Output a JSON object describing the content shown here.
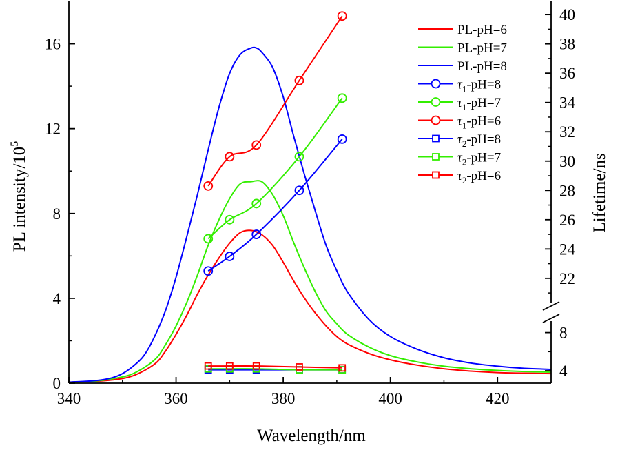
{
  "chart_data": {
    "type": "line",
    "xlabel": "Wavelength/nm",
    "ylabel_left": "PL intensity/10⁵",
    "ylabel_right": "Lifetime/ns",
    "xlim": [
      340,
      430
    ],
    "ylim_left": [
      0,
      18
    ],
    "y_right_lower_range": [
      2.7,
      9.2
    ],
    "y_right_upper_range": [
      20.3,
      40.9
    ],
    "y_right_break_between": [
      9.2,
      20.3
    ],
    "x_ticks": [
      340,
      360,
      380,
      400,
      420
    ],
    "y_left_ticks": [
      0,
      4,
      8,
      12,
      16
    ],
    "y_right_ticks": [
      4,
      8,
      22,
      24,
      26,
      28,
      30,
      32,
      34,
      36,
      38,
      40
    ],
    "grid": false,
    "legend_position": "top-right",
    "colors": {
      "red": "#ff0000",
      "green": "#33ee00",
      "blue": "#0000ff"
    },
    "pl_series": [
      {
        "name": "PL-pH=6",
        "color": "red",
        "axis": "left",
        "x": [
          340,
          344,
          348,
          352,
          356,
          358,
          360,
          362,
          364,
          366,
          368,
          370,
          372,
          374,
          376,
          378,
          380,
          382,
          384,
          386,
          388,
          390,
          392,
          396,
          400,
          405,
          410,
          415,
          420,
          425,
          430
        ],
        "y": [
          0.05,
          0.08,
          0.15,
          0.35,
          0.9,
          1.5,
          2.3,
          3.2,
          4.2,
          5.1,
          5.9,
          6.6,
          7.1,
          7.2,
          7.0,
          6.5,
          5.7,
          4.8,
          4.0,
          3.3,
          2.7,
          2.2,
          1.85,
          1.4,
          1.1,
          0.85,
          0.68,
          0.57,
          0.5,
          0.47,
          0.45
        ]
      },
      {
        "name": "PL-pH=7",
        "color": "green",
        "axis": "left",
        "x": [
          340,
          344,
          348,
          352,
          356,
          358,
          360,
          362,
          364,
          366,
          368,
          370,
          372,
          374,
          376,
          378,
          380,
          382,
          384,
          386,
          388,
          390,
          392,
          396,
          400,
          405,
          410,
          415,
          420,
          425,
          430
        ],
        "y": [
          0.05,
          0.08,
          0.2,
          0.45,
          1.1,
          1.8,
          2.7,
          3.8,
          5.1,
          6.5,
          7.7,
          8.7,
          9.4,
          9.5,
          9.5,
          8.9,
          7.9,
          6.6,
          5.4,
          4.3,
          3.4,
          2.8,
          2.3,
          1.7,
          1.3,
          1.0,
          0.8,
          0.68,
          0.6,
          0.55,
          0.52
        ]
      },
      {
        "name": "PL-pH=8",
        "color": "blue",
        "axis": "left",
        "x": [
          340,
          344,
          346,
          348,
          350,
          352,
          354,
          356,
          358,
          360,
          362,
          364,
          366,
          368,
          370,
          372,
          374,
          375,
          376,
          378,
          380,
          382,
          384,
          386,
          388,
          390,
          392,
          396,
          400,
          405,
          410,
          415,
          420,
          425,
          430
        ],
        "y": [
          0.05,
          0.1,
          0.15,
          0.25,
          0.45,
          0.8,
          1.3,
          2.2,
          3.4,
          5.0,
          6.9,
          8.9,
          11.0,
          13.0,
          14.6,
          15.5,
          15.8,
          15.8,
          15.6,
          14.9,
          13.5,
          11.6,
          9.8,
          8.1,
          6.5,
          5.3,
          4.3,
          3.0,
          2.2,
          1.6,
          1.2,
          0.95,
          0.8,
          0.7,
          0.65
        ]
      }
    ],
    "lifetime_series": [
      {
        "name": "τ1-pH=8",
        "tau": "τ",
        "sub": "1",
        "suffix": "-pH=8",
        "color": "blue",
        "marker": "circle",
        "axis": "right",
        "x": [
          366,
          370,
          375,
          383,
          391
        ],
        "y": [
          22.5,
          23.5,
          25.0,
          28.0,
          31.5
        ]
      },
      {
        "name": "τ1-pH=7",
        "tau": "τ",
        "sub": "1",
        "suffix": "-pH=7",
        "color": "green",
        "marker": "circle",
        "axis": "right",
        "x": [
          366,
          370,
          375,
          383,
          391
        ],
        "y": [
          24.7,
          26.0,
          27.1,
          30.3,
          34.3
        ]
      },
      {
        "name": "τ1-pH=6",
        "tau": "τ",
        "sub": "1",
        "suffix": "-pH=6",
        "color": "red",
        "marker": "circle",
        "axis": "right",
        "x": [
          366,
          370,
          375,
          383,
          391
        ],
        "y": [
          28.3,
          30.3,
          31.1,
          35.5,
          39.9
        ]
      },
      {
        "name": "τ2-pH=8",
        "tau": "τ",
        "sub": "2",
        "suffix": "-pH=8",
        "color": "blue",
        "marker": "square",
        "axis": "right",
        "x": [
          366,
          370,
          375,
          383,
          391
        ],
        "y": [
          4.1,
          4.1,
          4.1,
          4.1,
          4.1
        ]
      },
      {
        "name": "τ2-pH=7",
        "tau": "τ",
        "sub": "2",
        "suffix": "-pH=7",
        "color": "green",
        "marker": "square",
        "axis": "right",
        "x": [
          366,
          370,
          375,
          383,
          391
        ],
        "y": [
          4.2,
          4.2,
          4.2,
          4.1,
          4.1
        ]
      },
      {
        "name": "τ2-pH=6",
        "tau": "τ",
        "sub": "2",
        "suffix": "-pH=6",
        "color": "red",
        "marker": "square",
        "axis": "right",
        "x": [
          366,
          370,
          375,
          383,
          391
        ],
        "y": [
          4.5,
          4.5,
          4.5,
          4.4,
          4.3
        ]
      }
    ]
  }
}
